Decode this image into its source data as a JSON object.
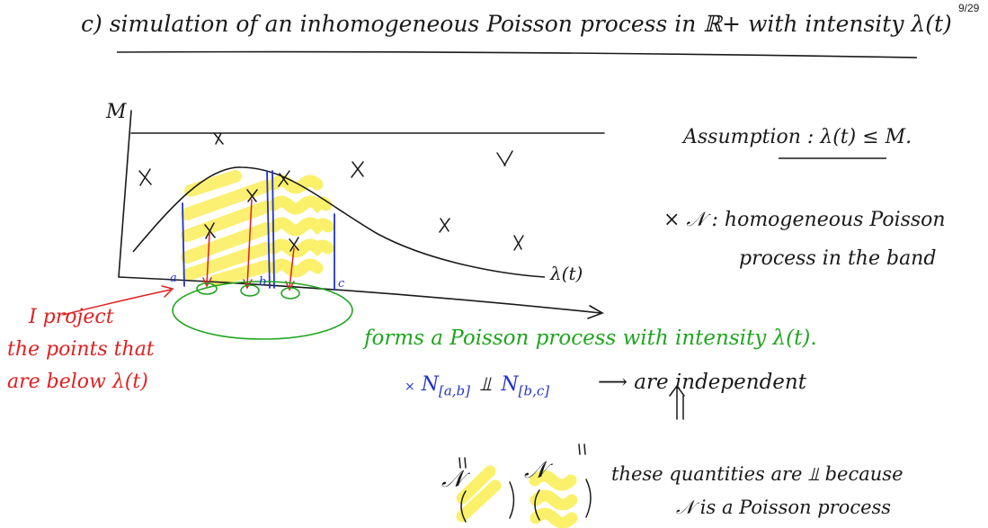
{
  "page_number": "9/29",
  "heading": "c) simulation of an inhomogeneous Poisson process in ℝ+ with intensity λ(t)",
  "graph": {
    "y_label": "M",
    "curve_label": "λ(t)",
    "interval_labels": [
      "a",
      "b",
      "c"
    ]
  },
  "notes": {
    "assumption": "Assumption : λ(t) ≤ M.",
    "poisson_line1": "× 𝒩 : homogeneous Poisson",
    "poisson_line2": "process in the band",
    "projection_line1": "I project",
    "projection_line2": "the points that",
    "projection_line3": "are below λ(t)",
    "forms": "forms a Poisson process with intensity λ(t).",
    "independent": "⟶ are independent",
    "because_line1": "these quantities are ⫫ because",
    "because_line2": "𝒩 is a Poisson process"
  },
  "formula": {
    "n1": "N",
    "n1_sub": "[a,b]",
    "indep": "⫫",
    "n2": "N",
    "n2_sub": "[b,c]"
  },
  "colors": {
    "ink": "#1a1a1a",
    "blue": "#2233cc",
    "red": "#e02020",
    "green": "#1fa51f",
    "highlight": "#fbf06a"
  }
}
